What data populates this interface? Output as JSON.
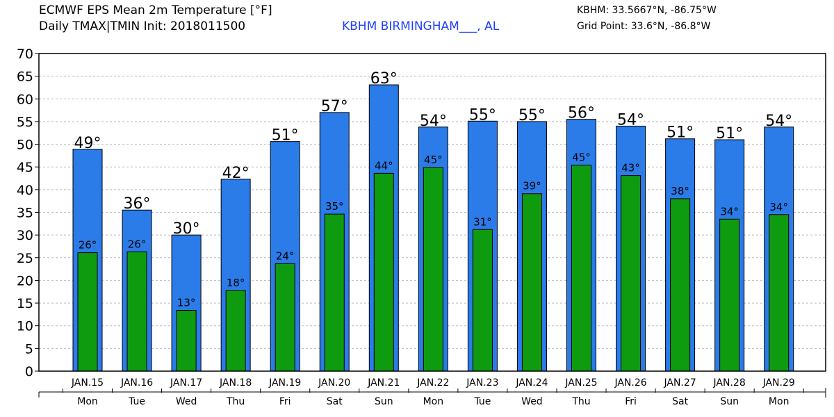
{
  "header": {
    "title_line1": "ECMWF EPS Mean 2m Temperature [°F]",
    "title_line2": "Daily TMAX|TMIN Init: 2018011500",
    "station": "KBHM BIRMINGHAM___, AL",
    "coords_line1": "KBHM: 33.5667°N, -86.75°W",
    "coords_line2": "Grid Point: 33.6°N, -86.8°W"
  },
  "chart_data": {
    "type": "bar",
    "categories": [
      "JAN.15",
      "JAN.16",
      "JAN.17",
      "JAN.18",
      "JAN.19",
      "JAN.20",
      "JAN.21",
      "JAN.22",
      "JAN.23",
      "JAN.24",
      "JAN.25",
      "JAN.26",
      "JAN.27",
      "JAN.28",
      "JAN.29"
    ],
    "weekdays": [
      "Mon",
      "Tue",
      "Wed",
      "Thu",
      "Fri",
      "Sat",
      "Sun",
      "Mon",
      "Tue",
      "Wed",
      "Thu",
      "Fri",
      "Sat",
      "Sun",
      "Mon"
    ],
    "series": [
      {
        "values": [
          48.9,
          35.5,
          30.0,
          42.3,
          50.6,
          57.0,
          63.1,
          53.8,
          55.1,
          55.0,
          55.5,
          54.0,
          51.2,
          51.0,
          53.8
        ],
        "labels": [
          "49°",
          "36°",
          "30°",
          "42°",
          "51°",
          "57°",
          "63°",
          "54°",
          "55°",
          "55°",
          "56°",
          "54°",
          "51°",
          "51°",
          "54°"
        ],
        "color": "#2b7be9"
      },
      {
        "values": [
          26.1,
          26.3,
          13.4,
          17.8,
          23.7,
          34.6,
          43.6,
          44.9,
          31.2,
          39.1,
          45.4,
          43.1,
          38.0,
          33.5,
          34.5
        ],
        "labels": [
          "26°",
          "26°",
          "13°",
          "18°",
          "24°",
          "35°",
          "44°",
          "45°",
          "31°",
          "39°",
          "45°",
          "43°",
          "38°",
          "34°",
          "34°"
        ],
        "color": "#0f9b10"
      }
    ],
    "ylim": [
      0,
      70
    ],
    "yticks": [
      "0",
      "5",
      "10",
      "15",
      "20",
      "25",
      "30",
      "35",
      "40",
      "45",
      "50",
      "55",
      "60",
      "65",
      "70"
    ],
    "grid": true,
    "gridline_color": "#bbbbbb",
    "frame_color": "#000000"
  }
}
